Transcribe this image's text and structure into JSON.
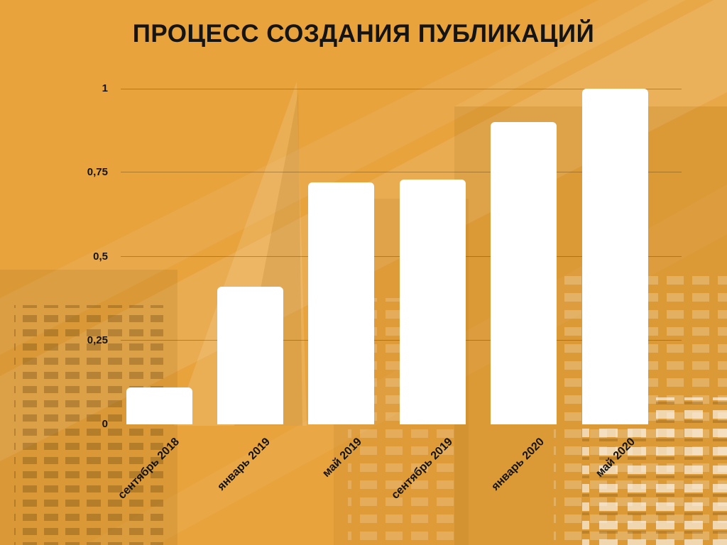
{
  "title": "ПРОЦЕСС СОЗДАНИЯ ПУБЛИКАЦИЙ",
  "colors": {
    "background": "#E8A33D",
    "bar": "#FFFFFF",
    "text": "#141414",
    "gridline": "rgba(85,55,12,0.38)"
  },
  "chart_data": {
    "type": "bar",
    "title": "ПРОЦЕСС СОЗДАНИЯ ПУБЛИКАЦИЙ",
    "categories": [
      "сентябрь 2018",
      "январь 2019",
      "май 2019",
      "сентябрь 2019",
      "январь 2020",
      "май 2020"
    ],
    "values": [
      0.11,
      0.41,
      0.72,
      0.73,
      0.9,
      1.0
    ],
    "xlabel": "",
    "ylabel": "",
    "ylim": [
      0,
      1
    ],
    "yticks": [
      {
        "value": 0,
        "label": "0"
      },
      {
        "value": 0.25,
        "label": "0,25"
      },
      {
        "value": 0.5,
        "label": "0,5"
      },
      {
        "value": 0.75,
        "label": "0,75"
      },
      {
        "value": 1,
        "label": "1"
      }
    ],
    "grid": true,
    "legend": false
  }
}
